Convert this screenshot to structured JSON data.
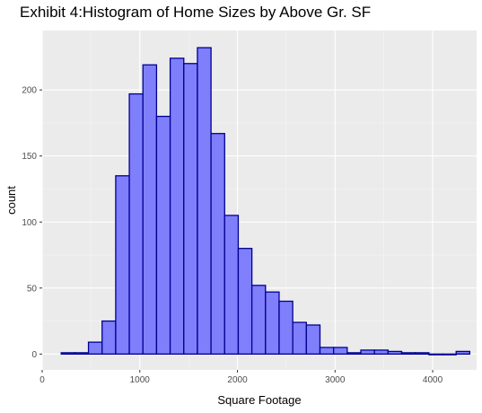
{
  "chart_data": {
    "type": "bar",
    "title": "Exhibit 4:Histogram of Home Sizes by Above Gr. SF",
    "xlabel": "Square Footage",
    "ylabel": "count",
    "xlim": [
      0,
      4450
    ],
    "ylim": [
      -12,
      245
    ],
    "x_ticks": [
      0,
      1000,
      2000,
      3000,
      4000
    ],
    "x_tick_labels": [
      "0",
      "1000",
      "2000",
      "3000",
      "4000"
    ],
    "y_ticks": [
      0,
      50,
      100,
      150,
      200
    ],
    "y_tick_labels": [
      "0",
      "50",
      "100",
      "150",
      "200"
    ],
    "grid": true,
    "bin_width": 139.5,
    "bins": [
      {
        "x0": 195,
        "count": 1
      },
      {
        "x0": 334.5,
        "count": 1
      },
      {
        "x0": 474,
        "count": 9
      },
      {
        "x0": 613.5,
        "count": 25
      },
      {
        "x0": 753,
        "count": 135
      },
      {
        "x0": 892.5,
        "count": 197
      },
      {
        "x0": 1032,
        "count": 219
      },
      {
        "x0": 1171.5,
        "count": 180
      },
      {
        "x0": 1311,
        "count": 224
      },
      {
        "x0": 1450.5,
        "count": 220
      },
      {
        "x0": 1590,
        "count": 232
      },
      {
        "x0": 1729.5,
        "count": 167
      },
      {
        "x0": 1869,
        "count": 105
      },
      {
        "x0": 2008.5,
        "count": 80
      },
      {
        "x0": 2148,
        "count": 52
      },
      {
        "x0": 2287.5,
        "count": 47
      },
      {
        "x0": 2427,
        "count": 40
      },
      {
        "x0": 2566.5,
        "count": 24
      },
      {
        "x0": 2706,
        "count": 22
      },
      {
        "x0": 2845.5,
        "count": 5
      },
      {
        "x0": 2985,
        "count": 5
      },
      {
        "x0": 3124.5,
        "count": 1
      },
      {
        "x0": 3264,
        "count": 3
      },
      {
        "x0": 3403.5,
        "count": 3
      },
      {
        "x0": 3543,
        "count": 2
      },
      {
        "x0": 3682.5,
        "count": 1
      },
      {
        "x0": 3822,
        "count": 1
      },
      {
        "x0": 3961.5,
        "count": 0
      },
      {
        "x0": 4101,
        "count": 0
      },
      {
        "x0": 4240.5,
        "count": 2
      }
    ],
    "colors": {
      "fill": "#7f7ffb",
      "stroke": "#000090",
      "panel": "#ebebeb",
      "grid_major": "#ffffff",
      "grid_minor": "#f5f5f5"
    }
  }
}
